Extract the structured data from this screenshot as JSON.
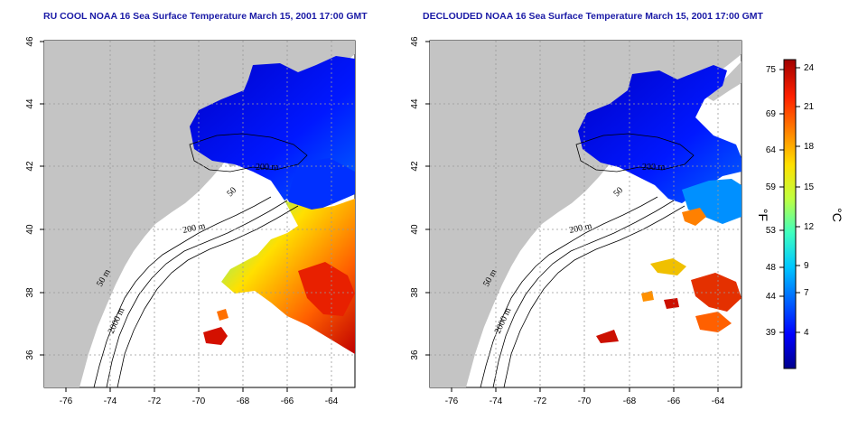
{
  "maps": [
    {
      "title": "RU COOL NOAA 16 Sea Surface Temperature March 15, 2001 17:00 GMT",
      "variant": "raw"
    },
    {
      "title": "DECLOUDED NOAA 16 Sea Surface Temperature March 15, 2001 17:00 GMT",
      "variant": "declouded"
    }
  ],
  "longitude_ticks": [
    "-76",
    "-74",
    "-72",
    "-70",
    "-68",
    "-66",
    "-64"
  ],
  "latitude_ticks": [
    "36",
    "38",
    "40",
    "42",
    "44",
    "46"
  ],
  "contour_labels": [
    "200 m",
    "2000 m",
    "50 m",
    "200 m",
    "50"
  ],
  "colorbar": {
    "fahrenheit_ticks": [
      "75",
      "69",
      "64",
      "59",
      "53",
      "48",
      "44",
      "39"
    ],
    "celsius_ticks": [
      "24",
      "21",
      "18",
      "15",
      "12",
      "9",
      "7",
      "4"
    ],
    "fahrenheit_unit": "°F",
    "celsius_unit": "°C",
    "colors": [
      "#00008c",
      "#0000ff",
      "#0064ff",
      "#00c8ff",
      "#40ffbf",
      "#c0ff40",
      "#ffe000",
      "#ff8000",
      "#ff2000",
      "#a00000"
    ]
  },
  "colors": {
    "land": "#c4c4c4",
    "ocean": "#ffffff",
    "grid": "#999999",
    "title": "#1a1aa6"
  }
}
